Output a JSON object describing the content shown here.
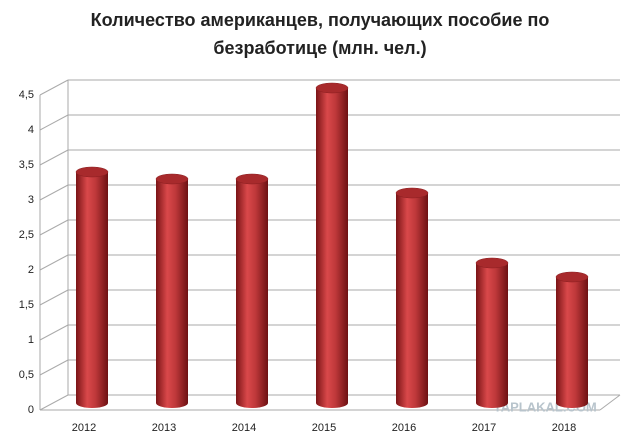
{
  "chart_data": {
    "type": "bar3d",
    "title": "Количество американцев, получающих пособие по безработице (млн. чел.)",
    "categories": [
      "2012",
      "2013",
      "2014",
      "2015",
      "2016",
      "2017",
      "2018"
    ],
    "values": [
      3.3,
      3.2,
      3.2,
      4.5,
      3.0,
      2.0,
      1.8
    ],
    "color": "#c0393b",
    "ylim": [
      0,
      4.5
    ],
    "yticks": [
      0,
      {
        "value": 0.5,
        "label": "0,5"
      },
      1,
      {
        "value": 1.5,
        "label": "1,5"
      },
      2,
      {
        "value": 2.5,
        "label": "2,5"
      },
      3,
      {
        "value": 3.5,
        "label": "3,5"
      },
      4,
      {
        "value": 4.5,
        "label": "4,5"
      }
    ],
    "grid": true
  },
  "watermark": "YAPLAKAL.COM"
}
